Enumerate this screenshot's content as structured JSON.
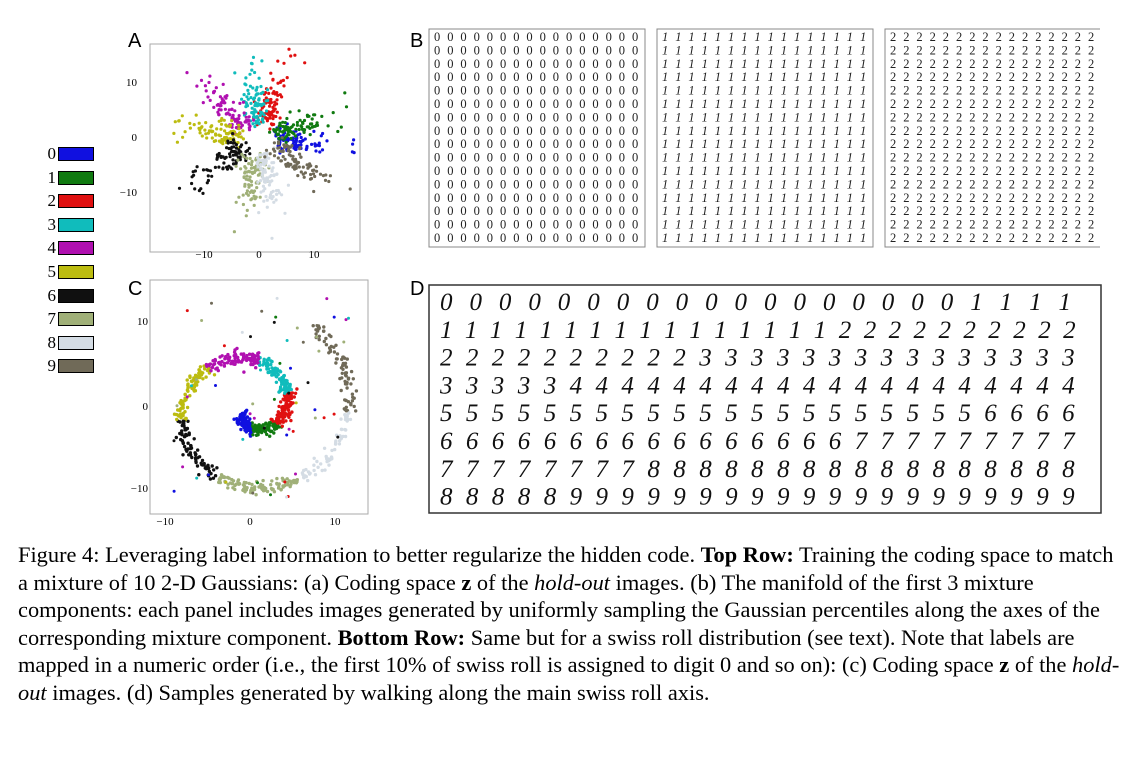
{
  "panels": {
    "a": {
      "letter": "A",
      "ticks_x": [
        "−10",
        "0",
        "10"
      ],
      "ticks_y": [
        "10",
        "0",
        "−10"
      ]
    },
    "b": {
      "letter": "B",
      "digits": [
        "0",
        "1",
        "2"
      ]
    },
    "c": {
      "letter": "C",
      "ticks_x": [
        "−10",
        "0",
        "10"
      ],
      "ticks_y": [
        "10",
        "0",
        "−10"
      ]
    },
    "d": {
      "letter": "D",
      "rows": [
        "00000000000000000011 11",
        "11111111111111112222222222",
        "2222222222333333333333333",
        "3333344444444444444444444",
        "5555555555555555555556666",
        "6666666666666666777777777",
        "7777777788888888888888888",
        "8888899999999999999999999"
      ]
    }
  },
  "legend": [
    {
      "label": "0",
      "color": "#1010e0"
    },
    {
      "label": "1",
      "color": "#107a10"
    },
    {
      "label": "2",
      "color": "#e01010"
    },
    {
      "label": "3",
      "color": "#10bcbc"
    },
    {
      "label": "4",
      "color": "#b010b0"
    },
    {
      "label": "5",
      "color": "#bcbc10"
    },
    {
      "label": "6",
      "color": "#101010"
    },
    {
      "label": "7",
      "color": "#a0b078"
    },
    {
      "label": "8",
      "color": "#d4dce4"
    },
    {
      "label": "9",
      "color": "#706a58"
    }
  ],
  "caption": {
    "prefix": "Figure 4: Leveraging label information to better regularize the hidden code. ",
    "top_row_label": "Top Row:",
    "part1": " Training the coding space to match a mixture of 10 2-D Gaussians: (a) Coding space ",
    "z1": "z",
    "part2": " of the ",
    "holdout1": "hold-out",
    "part3": " images. (b) The manifold of the first 3 mixture components: each panel includes images generated by uniformly sampling the Gaussian percentiles along the axes of the corresponding mixture component. ",
    "bottom_row_label": "Bottom Row:",
    "part4": " Same but for a swiss roll distribution (see text). Note that labels are mapped in a numeric order (i.e., the first 10% of swiss roll is assigned to digit 0 and so on): (c) Coding space ",
    "z2": "z",
    "part5": " of the ",
    "holdout2": "hold-out",
    "part6": " images. (d) Samples generated by walking along the main swiss roll axis."
  }
}
